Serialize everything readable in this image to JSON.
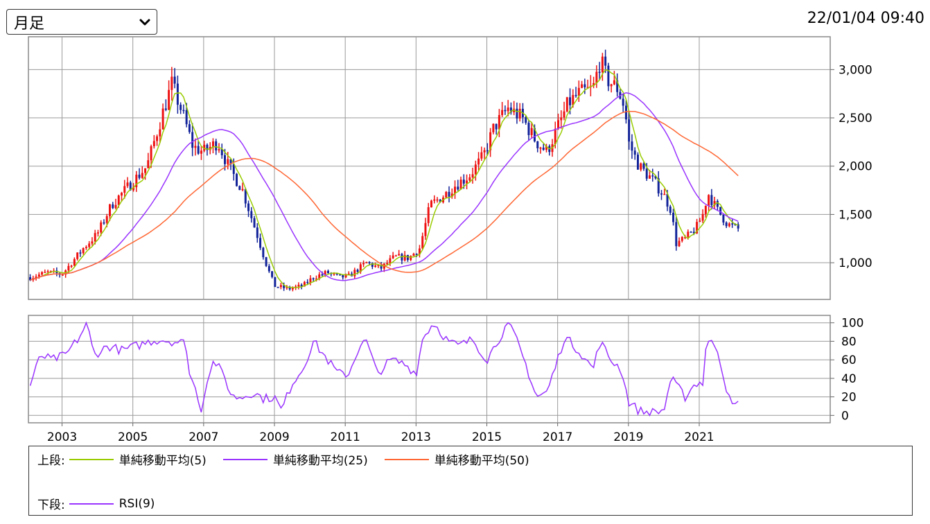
{
  "period_select": {
    "value": "月足"
  },
  "timestamp": "22/01/04 09:40",
  "legend": {
    "upper_label": "上段:",
    "lower_label": "下段:",
    "upper_items": [
      {
        "label": "単純移動平均(5)",
        "color": "#99cc00"
      },
      {
        "label": "単純移動平均(25)",
        "color": "#9933ff"
      },
      {
        "label": "単純移動平均(50)",
        "color": "#ff6633"
      }
    ],
    "lower_items": [
      {
        "label": "RSI(9)",
        "color": "#9933ff"
      }
    ]
  },
  "colors": {
    "up": "#ee1111",
    "down": "#112299",
    "grid": "#999999"
  },
  "chart_data": [
    {
      "type": "candlestick",
      "panel": "price",
      "x_tick_labels": [
        "2003",
        "2005",
        "2007",
        "2009",
        "2011",
        "2013",
        "2015",
        "2017",
        "2019",
        "2021"
      ],
      "x_tick_years": [
        2002.9,
        2004.9,
        2006.9,
        2008.9,
        2010.9,
        2012.9,
        2014.9,
        2016.9,
        2018.9,
        2020.9
      ],
      "xlim": [
        2001.95,
        2024.6
      ],
      "y_tick_labels": [
        "1,000",
        "1,500",
        "2,000",
        "2,500",
        "3,000"
      ],
      "y_ticks": [
        1000,
        1500,
        2000,
        2500,
        3000
      ],
      "ylim": [
        620,
        3340
      ],
      "grid": true,
      "close_anchors": [
        [
          2002.0,
          850
        ],
        [
          2002.5,
          900
        ],
        [
          2002.9,
          880
        ],
        [
          2003.5,
          1150
        ],
        [
          2003.9,
          1300
        ],
        [
          2004.3,
          1600
        ],
        [
          2004.8,
          1800
        ],
        [
          2005.3,
          2000
        ],
        [
          2005.7,
          2500
        ],
        [
          2006.0,
          2850
        ],
        [
          2006.3,
          2550
        ],
        [
          2006.6,
          2200
        ],
        [
          2006.9,
          2150
        ],
        [
          2007.3,
          2250
        ],
        [
          2007.6,
          2000
        ],
        [
          2008.0,
          1750
        ],
        [
          2008.4,
          1300
        ],
        [
          2008.7,
          950
        ],
        [
          2008.9,
          760
        ],
        [
          2009.3,
          730
        ],
        [
          2009.7,
          760
        ],
        [
          2010.0,
          850
        ],
        [
          2010.4,
          900
        ],
        [
          2010.7,
          850
        ],
        [
          2011.0,
          860
        ],
        [
          2011.5,
          1000
        ],
        [
          2011.9,
          940
        ],
        [
          2012.3,
          1060
        ],
        [
          2012.7,
          1050
        ],
        [
          2013.0,
          1150
        ],
        [
          2013.3,
          1600
        ],
        [
          2013.7,
          1700
        ],
        [
          2014.0,
          1800
        ],
        [
          2014.4,
          1900
        ],
        [
          2014.8,
          2100
        ],
        [
          2015.1,
          2400
        ],
        [
          2015.5,
          2600
        ],
        [
          2015.9,
          2500
        ],
        [
          2016.3,
          2250
        ],
        [
          2016.6,
          2150
        ],
        [
          2016.9,
          2400
        ],
        [
          2017.2,
          2650
        ],
        [
          2017.5,
          2750
        ],
        [
          2017.9,
          2800
        ],
        [
          2018.1,
          3100
        ],
        [
          2018.3,
          2900
        ],
        [
          2018.6,
          2800
        ],
        [
          2018.8,
          2600
        ],
        [
          2018.9,
          2250
        ],
        [
          2019.2,
          2000
        ],
        [
          2019.6,
          1850
        ],
        [
          2019.9,
          1700
        ],
        [
          2020.1,
          1550
        ],
        [
          2020.25,
          1200
        ],
        [
          2020.5,
          1250
        ],
        [
          2020.8,
          1350
        ],
        [
          2021.0,
          1500
        ],
        [
          2021.15,
          1720
        ],
        [
          2021.4,
          1550
        ],
        [
          2021.7,
          1400
        ],
        [
          2022.0,
          1350
        ]
      ]
    },
    {
      "type": "line",
      "panel": "indicator",
      "series": [
        {
          "name": "RSI(9)"
        }
      ],
      "y_tick_labels": [
        "0",
        "20",
        "40",
        "60",
        "80",
        "100"
      ],
      "y_ticks": [
        0,
        20,
        40,
        60,
        80,
        100
      ],
      "ylim": [
        -8,
        108
      ],
      "grid": true,
      "rsi_anchors": [
        [
          2002.0,
          33
        ],
        [
          2002.3,
          65
        ],
        [
          2002.6,
          60
        ],
        [
          2003.0,
          65
        ],
        [
          2003.4,
          85
        ],
        [
          2003.6,
          100
        ],
        [
          2003.8,
          65
        ],
        [
          2004.2,
          75
        ],
        [
          2004.6,
          70
        ],
        [
          2005.0,
          75
        ],
        [
          2005.4,
          80
        ],
        [
          2005.7,
          82
        ],
        [
          2006.0,
          80
        ],
        [
          2006.4,
          78
        ],
        [
          2006.5,
          45
        ],
        [
          2006.7,
          25
        ],
        [
          2006.85,
          5
        ],
        [
          2007.0,
          40
        ],
        [
          2007.2,
          60
        ],
        [
          2007.5,
          40
        ],
        [
          2007.7,
          20
        ],
        [
          2008.0,
          20
        ],
        [
          2008.3,
          25
        ],
        [
          2008.6,
          18
        ],
        [
          2008.9,
          20
        ],
        [
          2009.1,
          5
        ],
        [
          2009.4,
          35
        ],
        [
          2009.7,
          50
        ],
        [
          2010.0,
          80
        ],
        [
          2010.4,
          60
        ],
        [
          2010.7,
          45
        ],
        [
          2011.0,
          45
        ],
        [
          2011.3,
          75
        ],
        [
          2011.5,
          80
        ],
        [
          2011.8,
          45
        ],
        [
          2012.2,
          60
        ],
        [
          2012.6,
          55
        ],
        [
          2012.9,
          45
        ],
        [
          2013.1,
          85
        ],
        [
          2013.4,
          100
        ],
        [
          2013.8,
          80
        ],
        [
          2014.1,
          75
        ],
        [
          2014.5,
          82
        ],
        [
          2014.9,
          60
        ],
        [
          2015.2,
          80
        ],
        [
          2015.5,
          100
        ],
        [
          2015.7,
          85
        ],
        [
          2016.0,
          55
        ],
        [
          2016.3,
          20
        ],
        [
          2016.6,
          25
        ],
        [
          2016.9,
          60
        ],
        [
          2017.1,
          85
        ],
        [
          2017.5,
          70
        ],
        [
          2017.9,
          50
        ],
        [
          2018.1,
          80
        ],
        [
          2018.4,
          60
        ],
        [
          2018.7,
          50
        ],
        [
          2018.9,
          15
        ],
        [
          2019.2,
          5
        ],
        [
          2019.5,
          3
        ],
        [
          2019.9,
          5
        ],
        [
          2020.1,
          40
        ],
        [
          2020.5,
          20
        ],
        [
          2020.8,
          35
        ],
        [
          2021.0,
          35
        ],
        [
          2021.1,
          80
        ],
        [
          2021.4,
          75
        ],
        [
          2021.6,
          40
        ],
        [
          2021.8,
          10
        ],
        [
          2022.0,
          12
        ]
      ]
    }
  ]
}
